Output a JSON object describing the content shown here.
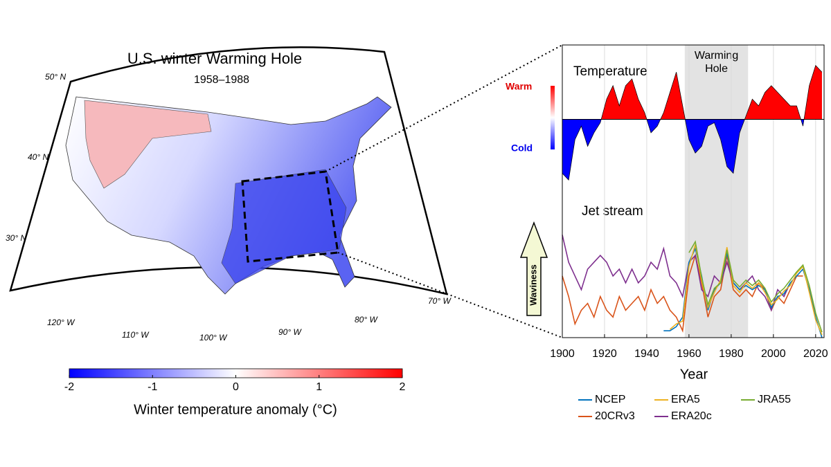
{
  "map": {
    "title": "U.S. winter Warming Hole",
    "subtitle": "1958–1988",
    "lat_labels": [
      "50° N",
      "40° N",
      "30° N"
    ],
    "lon_labels": [
      "120° W",
      "110° W",
      "100° W",
      "90° W",
      "80° W",
      "70° W"
    ],
    "colorbar": {
      "label": "Winter temperature anomaly (°C)",
      "lim": [
        -2,
        2
      ],
      "ticks": [
        -2,
        -1,
        0,
        1,
        2
      ],
      "colors": [
        "#0000ff",
        "#ffffff",
        "#ff0000"
      ]
    }
  },
  "chart_data": {
    "type": "line",
    "xlabel": "Year",
    "xlim": [
      1900,
      2024
    ],
    "xticks": [
      1900,
      1920,
      1940,
      1960,
      1980,
      2000,
      2020
    ],
    "grid": true,
    "highlight": [
      1958,
      1988
    ],
    "highlight_label": [
      "Warming",
      "Hole"
    ],
    "x": [
      1900,
      1903,
      1906,
      1909,
      1912,
      1915,
      1918,
      1921,
      1924,
      1927,
      1930,
      1933,
      1936,
      1939,
      1942,
      1945,
      1948,
      1951,
      1954,
      1957,
      1960,
      1963,
      1966,
      1969,
      1972,
      1975,
      1978,
      1981,
      1984,
      1987,
      1990,
      1993,
      1996,
      1999,
      2002,
      2005,
      2008,
      2011,
      2014,
      2017,
      2020,
      2023
    ],
    "temperature": {
      "label": "Temperature",
      "warm_label": "Warm",
      "cold_label": "Cold",
      "warm_color": "#ff0000",
      "cold_color": "#0000ff",
      "ylim": [
        -1,
        1
      ],
      "values": [
        -0.8,
        -0.9,
        -0.3,
        -0.1,
        -0.4,
        -0.2,
        -0.05,
        0.3,
        0.5,
        0.2,
        0.5,
        0.6,
        0.3,
        0.1,
        -0.2,
        -0.1,
        0.1,
        0.4,
        0.7,
        0.2,
        -0.3,
        -0.5,
        -0.4,
        -0.1,
        -0.05,
        -0.3,
        -0.7,
        -0.8,
        -0.2,
        0.05,
        0.3,
        0.2,
        0.4,
        0.5,
        0.4,
        0.3,
        0.2,
        0.2,
        -0.1,
        0.5,
        0.8,
        0.7
      ]
    },
    "jet": {
      "label": "Jet stream",
      "arrow_label": "Waviness",
      "ylim": [
        0,
        1
      ],
      "series": [
        {
          "name": "NCEP",
          "color": "#0072bd",
          "values": [
            null,
            null,
            null,
            null,
            null,
            null,
            null,
            null,
            null,
            null,
            null,
            null,
            null,
            null,
            null,
            null,
            0.05,
            0.05,
            0.08,
            0.15,
            0.55,
            0.65,
            0.45,
            0.2,
            0.35,
            0.4,
            0.62,
            0.4,
            0.35,
            0.38,
            0.35,
            0.38,
            0.35,
            0.22,
            0.3,
            0.32,
            0.4,
            0.45,
            0.5,
            0.35,
            0.15,
            0.0
          ]
        },
        {
          "name": "ERA5",
          "color": "#edb120",
          "values": [
            null,
            null,
            null,
            null,
            null,
            null,
            null,
            null,
            null,
            null,
            null,
            null,
            null,
            null,
            null,
            null,
            null,
            0.06,
            0.1,
            0.12,
            0.52,
            0.68,
            0.42,
            0.22,
            0.33,
            0.42,
            0.66,
            0.38,
            0.33,
            0.4,
            0.36,
            0.4,
            0.33,
            0.24,
            0.28,
            0.34,
            0.38,
            0.47,
            0.52,
            0.33,
            0.13,
            0.02
          ]
        },
        {
          "name": "JRA55",
          "color": "#77ac30",
          "values": [
            null,
            null,
            null,
            null,
            null,
            null,
            null,
            null,
            null,
            null,
            null,
            null,
            null,
            null,
            null,
            null,
            null,
            null,
            null,
            null,
            0.62,
            0.7,
            0.44,
            0.24,
            0.36,
            0.4,
            0.64,
            0.42,
            0.37,
            0.42,
            0.38,
            0.42,
            0.36,
            0.26,
            0.32,
            0.36,
            0.42,
            0.48,
            0.53,
            0.38,
            0.18,
            0.04
          ]
        },
        {
          "name": "20CRv3",
          "color": "#d95319",
          "values": [
            0.45,
            0.3,
            0.1,
            0.2,
            0.25,
            0.15,
            0.3,
            0.2,
            0.15,
            0.3,
            0.2,
            0.25,
            0.3,
            0.2,
            0.35,
            0.25,
            0.3,
            0.2,
            0.15,
            0.05,
            0.45,
            0.6,
            0.4,
            0.15,
            0.3,
            0.35,
            0.6,
            0.35,
            0.3,
            0.35,
            0.3,
            0.4,
            0.35,
            0.2,
            0.3,
            0.25,
            0.35,
            0.45,
            0.45,
            null,
            null,
            null
          ]
        },
        {
          "name": "ERA20c",
          "color": "#7e2f8e",
          "values": [
            0.75,
            0.55,
            0.45,
            0.35,
            0.5,
            0.55,
            0.6,
            0.55,
            0.45,
            0.5,
            0.4,
            0.5,
            0.4,
            0.45,
            0.55,
            0.5,
            0.65,
            0.45,
            0.4,
            0.3,
            0.55,
            0.6,
            0.35,
            0.3,
            0.45,
            0.4,
            0.55,
            0.4,
            0.35,
            0.4,
            0.45,
            0.35,
            0.3,
            0.2,
            0.35,
            0.3,
            0.4,
            null,
            null,
            null,
            null,
            null
          ]
        }
      ]
    }
  }
}
